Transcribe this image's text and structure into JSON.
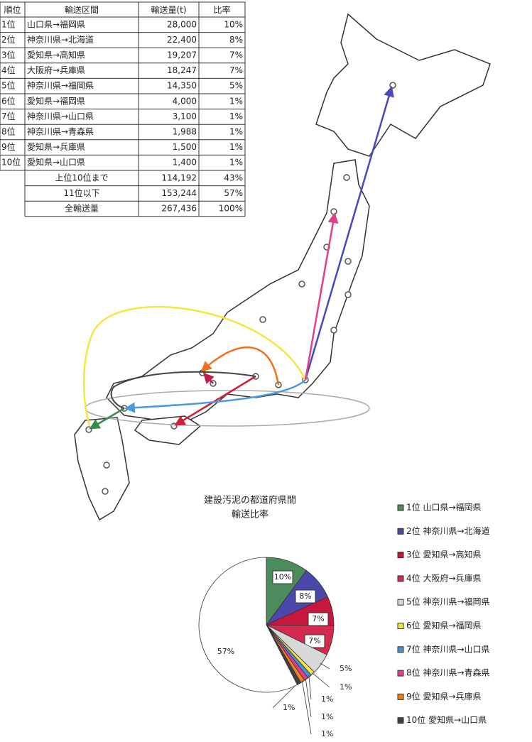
{
  "table": {
    "headers": [
      "順位",
      "輸送区間",
      "輸送量(t)",
      "比率"
    ],
    "rows": [
      [
        "1位",
        "山口県→福岡県",
        "28,000",
        "10%"
      ],
      [
        "2位",
        "神奈川県→北海道",
        "22,400",
        "8%"
      ],
      [
        "3位",
        "愛知県→高知県",
        "19,207",
        "7%"
      ],
      [
        "4位",
        "大阪府→兵庫県",
        "18,247",
        "7%"
      ],
      [
        "5位",
        "神奈川県→福岡県",
        "14,350",
        "5%"
      ],
      [
        "6位",
        "愛知県→福岡県",
        "4,000",
        "1%"
      ],
      [
        "7位",
        "神奈川県→山口県",
        "3,100",
        "1%"
      ],
      [
        "8位",
        "神奈川県→青森県",
        "1,988",
        "1%"
      ],
      [
        "9位",
        "愛知県→兵庫県",
        "1,500",
        "1%"
      ],
      [
        "10位",
        "愛知県→山口県",
        "1,400",
        "1%"
      ]
    ],
    "summary": [
      [
        "上位10位まで",
        "114,192",
        "43%"
      ],
      [
        "11位以下",
        "153,244",
        "57%"
      ],
      [
        "全輸送量",
        "267,436",
        "100%"
      ]
    ]
  },
  "chart_data": {
    "type": "pie",
    "title_lines": [
      "建設汚泥の都道府県間",
      "輸送比率"
    ],
    "categories": [
      "1位 山口県→福岡県",
      "2位 神奈川県→北海道",
      "3位 愛知県→高知県",
      "4位 大阪府→兵庫県",
      "5位 神奈川県→福岡県",
      "6位 愛知県→福岡県",
      "7位 神奈川県→山口県",
      "8位 神奈川県→青森県",
      "9位 愛知県→兵庫県",
      "10位 愛知県→山口県",
      "11位以下"
    ],
    "values": [
      10,
      8,
      7,
      7,
      5,
      1,
      1,
      1,
      1,
      1,
      57
    ],
    "value_labels": [
      "10%",
      "8%",
      "7%",
      "7%",
      "5%",
      "1%",
      "1%",
      "1%",
      "1%",
      "1%",
      "57%"
    ],
    "colors": [
      "#4d8a5c",
      "#4a48a8",
      "#c8163e",
      "#d42a50",
      "#d8d8d8",
      "#f2e448",
      "#4a90d0",
      "#e0408a",
      "#f08020",
      "#404040",
      "#ffffff"
    ]
  }
}
